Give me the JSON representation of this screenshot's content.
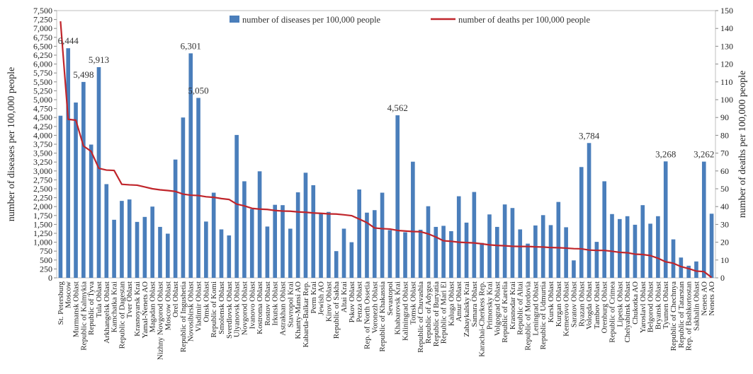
{
  "chart_data": {
    "type": "bar+line",
    "ylabel_left": "number of diseases per 100,000 people",
    "ylabel_right": "number of deaths per 100,000 people",
    "y_left_lim": [
      0,
      7500
    ],
    "y_left_ticks": [
      "0",
      "250",
      "500",
      "750",
      "1,000",
      "1,250",
      "1,500",
      "1,750",
      "2,000",
      "2,250",
      "2,500",
      "2,750",
      "3,000",
      "3,250",
      "3,500",
      "3,750",
      "4,000",
      "4,250",
      "4,500",
      "4,750",
      "5,000",
      "5,250",
      "5,500",
      "5,750",
      "6,000",
      "6,250",
      "6,500",
      "6,750",
      "7,000",
      "7,250",
      "7,500"
    ],
    "y_right_lim": [
      0,
      150
    ],
    "y_right_ticks": [
      "0",
      "10",
      "20",
      "30",
      "40",
      "50",
      "60",
      "70",
      "80",
      "90",
      "100",
      "110",
      "120",
      "130",
      "140",
      "150"
    ],
    "legend_position": "top",
    "series": [
      {
        "name": "number of diseases per 100,000 people",
        "kind": "bar",
        "color": "#4a7ebb",
        "axis": "left",
        "values": [
          4550,
          6444,
          4920,
          5498,
          3740,
          5913,
          2630,
          1630,
          2160,
          2200,
          1570,
          1710,
          2000,
          1430,
          1240,
          3320,
          4500,
          6301,
          5050,
          1580,
          2390,
          1360,
          1190,
          4010,
          2710,
          1930,
          2990,
          1440,
          2050,
          2040,
          1380,
          2400,
          2950,
          2600,
          1820,
          1850,
          750,
          1380,
          1000,
          2480,
          1830,
          1900,
          2390,
          1340,
          4562,
          1280,
          3260,
          1350,
          2010,
          1430,
          1460,
          1310,
          2290,
          1550,
          2410,
          980,
          1780,
          1430,
          2060,
          1960,
          1360,
          960,
          1470,
          1760,
          1480,
          2130,
          1420,
          490,
          3110,
          3784,
          1010,
          2710,
          1790,
          1650,
          1730,
          1490,
          2040,
          1520,
          1730,
          3268,
          1080,
          570,
          340,
          460,
          3262,
          1800
        ]
      },
      {
        "name": "number of deaths per 100,000 people",
        "kind": "line",
        "color": "#c0252b",
        "axis": "right",
        "values": [
          144,
          89,
          88.5,
          74,
          71,
          61.5,
          60.5,
          60.3,
          52.5,
          52.2,
          52,
          51,
          50,
          49.4,
          49,
          48.5,
          47,
          46.4,
          46.2,
          45.5,
          45.2,
          44.5,
          44,
          41.4,
          40.4,
          39,
          38.6,
          38.4,
          37.8,
          37.5,
          37.4,
          37,
          36.8,
          36.4,
          36.2,
          35.9,
          35.8,
          35.4,
          34.9,
          33,
          31,
          28,
          27.6,
          27.4,
          26.6,
          26.3,
          26,
          25.9,
          24.7,
          22.9,
          20.8,
          20.5,
          20,
          19.8,
          19.6,
          19.1,
          18.5,
          18.2,
          18,
          17.7,
          17.6,
          17.6,
          17.4,
          17.3,
          17,
          16.9,
          16.7,
          16.4,
          16.3,
          15.6,
          15.4,
          15.4,
          14.9,
          14.3,
          14.1,
          13.3,
          13.1,
          12.5,
          11,
          9,
          8.2,
          6.3,
          5.2,
          3.8,
          3.5,
          0.2
        ]
      }
    ],
    "data_labels": [
      {
        "index": 1,
        "text": "6,444"
      },
      {
        "index": 3,
        "text": "5,498"
      },
      {
        "index": 5,
        "text": "5,913"
      },
      {
        "index": 17,
        "text": "6,301"
      },
      {
        "index": 18,
        "text": "5,050"
      },
      {
        "index": 44,
        "text": "4,562"
      },
      {
        "index": 69,
        "text": "3,784"
      },
      {
        "index": 79,
        "text": "3,268"
      },
      {
        "index": 84,
        "text": "3,262"
      }
    ],
    "categories": [
      "St. Petersburg",
      "Moscow",
      "Murmansk Oblast",
      "Republic of Kalmykia",
      "Republic of Tyva",
      "Tula Oblast",
      "Arkhangelsk Oblast",
      "Kamchatka Krai",
      "Republic of Dagestan",
      "Tver Oblast",
      "Krasnoyarsk Krai",
      "Yamal-Nenets AO",
      "Magadan Oblast",
      "Nizhny Novgorod Oblast",
      "Moscow Oblast",
      "Orel Oblast",
      "Republic of Ingushetia",
      "Novosibirsk Oblast",
      "Vladimir Oblast",
      "Omsk Oblast",
      "Republic of Komi",
      "Smolensk Oblast",
      "Sverdlovsk Oblast",
      "Ulyanovsk Oblast",
      "Novgorod Oblast",
      "Ivanovo Oblast",
      "Kostroma Oblast",
      "Rostov Oblast",
      "Irkutsk Oblast",
      "Astrakhan Oblast",
      "Stavropol Krai",
      "Khanty-Mansi AO",
      "Kabarda-Balkar Rep.",
      "Perm Krai",
      "Jewish AO",
      "Kirov Oblast",
      "Republic of Sakha",
      "Altai Krai",
      "Pskov Oblast",
      "Penza Oblast",
      "Rep. of North Ossetia",
      "Voronezh Oblast",
      "Republic of Khakassia",
      "Sevastopol",
      "Khabarovsk Krai",
      "Kaliningrad Oblast",
      "Tomsk Oblast",
      "Republic of Chuvashia",
      "Republic of Adygea",
      "Republic of Buryatia",
      "Republic of Mari El",
      "Kaluga Oblast",
      "Amur Oblast",
      "Zabaykalsky Krai",
      "Samara Oblast",
      "Karachai-Cherkess Rep.",
      "Primorsky Krai",
      "Volgograd Oblast",
      "Republic of Karelia",
      "Krasnodar Krai",
      "Republic of Altai",
      "Republic of Mordovia",
      "Leningrad Oblast",
      "Republic of Udmurtia",
      "Kursk Oblast",
      "Kurgan Oblast",
      "Kemerovo Oblast",
      "Saratov Oblast",
      "Ryazan Oblast",
      "Vologda Oblast",
      "Tambov Oblast",
      "Orenburg Oblast",
      "Republic of Crimea",
      "Lipetsk Oblast",
      "Chelyabinsk Oblast",
      "Chukotka AO",
      "Yaroslavl Oblast",
      "Belgorod Oblast",
      "Bryansk Oblast",
      "Tyumen Oblast",
      "Republic of Chechnya",
      "Republic of Tatarstan",
      "Rep. of Bashkortostan",
      "Sakhalin Oblast",
      "Nenets AO",
      "Nenets AO"
    ]
  }
}
